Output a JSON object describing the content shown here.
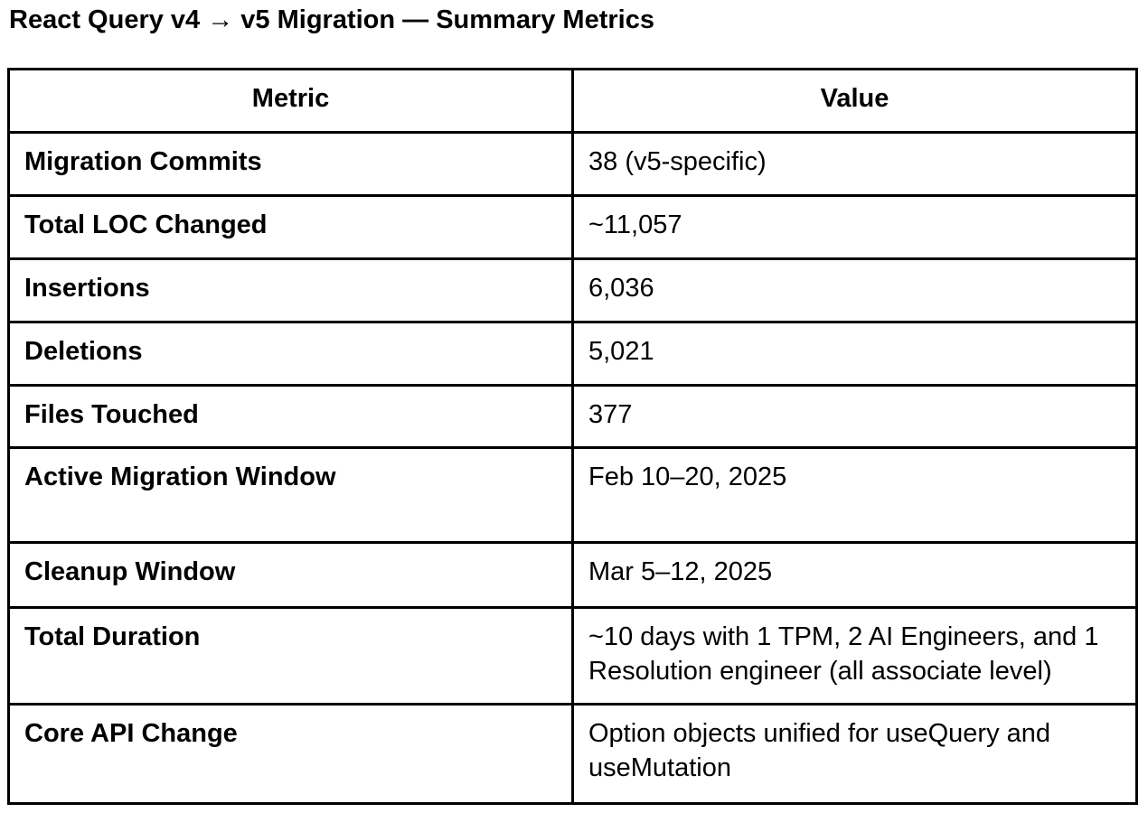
{
  "page": {
    "title": "React Query v4 → v5 Migration — Summary Metrics"
  },
  "table": {
    "columns": [
      "Metric",
      "Value"
    ],
    "rows": [
      {
        "metric": "Migration Commits",
        "value": "38 (v5-specific)"
      },
      {
        "metric": "Total LOC Changed",
        "value": "~11,057"
      },
      {
        "metric": "Insertions",
        "value": "6,036"
      },
      {
        "metric": "Deletions",
        "value": "5,021"
      },
      {
        "metric": "Files Touched",
        "value": "377"
      },
      {
        "metric": "Active Migration Window",
        "value": "Feb 10–20, 2025"
      },
      {
        "metric": "Cleanup Window",
        "value": "Mar 5–12, 2025"
      },
      {
        "metric": "Total Duration",
        "value": "~10 days with 1 TPM, 2 AI Engineers, and 1 Resolution engineer (all associate level)"
      },
      {
        "metric": "Core API Change",
        "value": "Option objects unified for useQuery and useMutation"
      }
    ]
  },
  "colors": {
    "text": "#000000",
    "border": "#000000",
    "background": "#ffffff"
  }
}
